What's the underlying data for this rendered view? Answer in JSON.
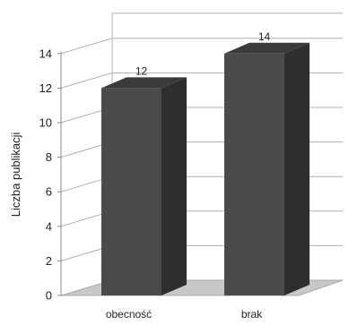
{
  "chart_data": {
    "type": "bar",
    "title": "",
    "xlabel": "",
    "ylabel": "Liczba publikacji",
    "categories": [
      "obecność",
      "brak"
    ],
    "values": [
      12,
      14
    ],
    "data_labels": [
      "12",
      "14"
    ],
    "ylim": [
      0,
      14
    ],
    "yticks": [
      "0",
      "2",
      "4",
      "6",
      "8",
      "10",
      "12",
      "14"
    ],
    "grid": true,
    "three_d": true,
    "colors": {
      "bar_front": "#4a4a4a",
      "bar_side": "#2e2e2e",
      "bar_top": "#3a3a3a",
      "floor": "#c8c8c8",
      "grid": "#b0b0b0"
    }
  }
}
